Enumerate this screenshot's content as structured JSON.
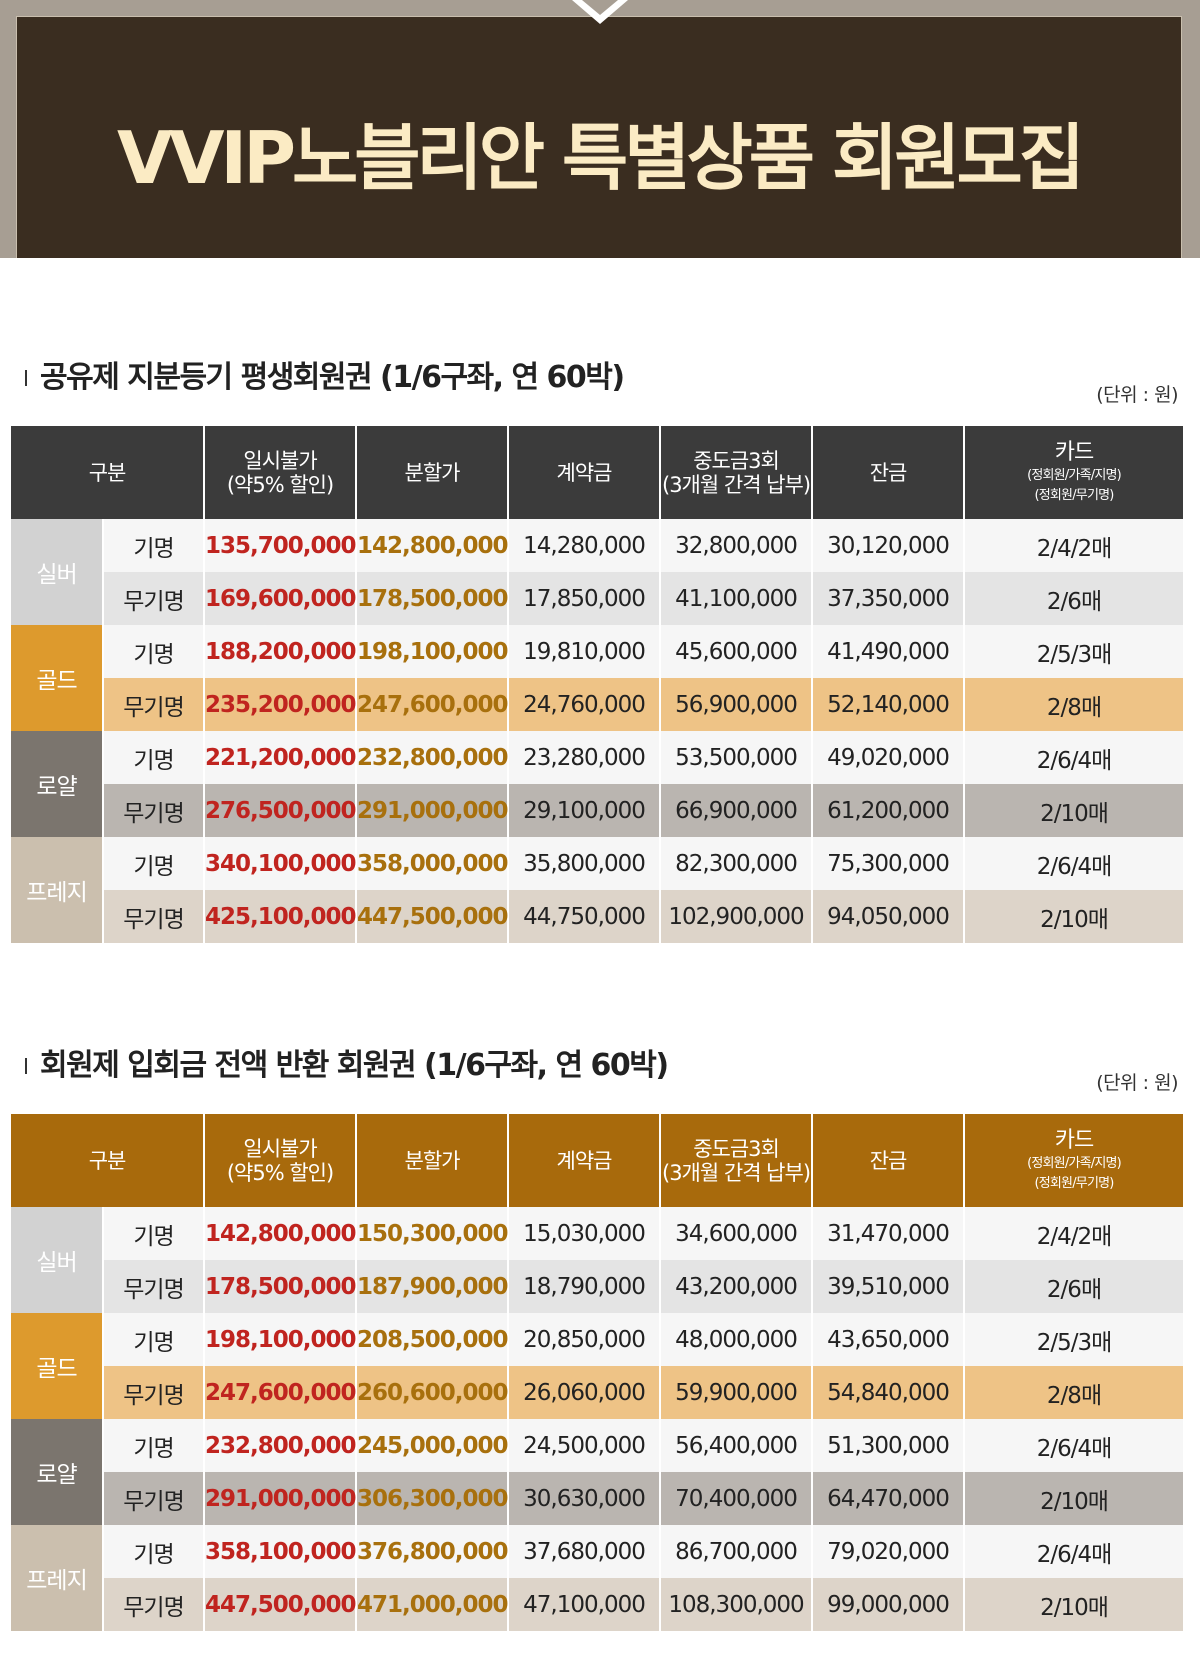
{
  "banner": {
    "title": "VVIP노블리안 특별상품 회원모집"
  },
  "columns": {
    "category": "구분",
    "lump_line1": "일시불가",
    "lump_line2": "(약5% 할인)",
    "installment": "분할가",
    "deposit": "계약금",
    "interim_line1": "중도금3회",
    "interim_line2": "(3개월 간격 납부)",
    "balance": "잔금",
    "card_line1": "카드",
    "card_line2": "(정회원/가족/지명)",
    "card_line3": "(정회원/무기명)"
  },
  "section1": {
    "title": "공유제 지분등기 평생회원권 (1/6구좌, 연 60박)",
    "unit": "(단위 : 원)",
    "rows": [
      {
        "tier": "실버",
        "type": "기명",
        "lump": "135,700,000",
        "inst": "142,800,000",
        "deposit": "14,280,000",
        "interim": "32,800,000",
        "balance": "30,120,000",
        "card": "2/4/2매"
      },
      {
        "tier": "실버",
        "type": "무기명",
        "lump": "169,600,000",
        "inst": "178,500,000",
        "deposit": "17,850,000",
        "interim": "41,100,000",
        "balance": "37,350,000",
        "card": "2/6매"
      },
      {
        "tier": "골드",
        "type": "기명",
        "lump": "188,200,000",
        "inst": "198,100,000",
        "deposit": "19,810,000",
        "interim": "45,600,000",
        "balance": "41,490,000",
        "card": "2/5/3매"
      },
      {
        "tier": "골드",
        "type": "무기명",
        "lump": "235,200,000",
        "inst": "247,600,000",
        "deposit": "24,760,000",
        "interim": "56,900,000",
        "balance": "52,140,000",
        "card": "2/8매"
      },
      {
        "tier": "로얄",
        "type": "기명",
        "lump": "221,200,000",
        "inst": "232,800,000",
        "deposit": "23,280,000",
        "interim": "53,500,000",
        "balance": "49,020,000",
        "card": "2/6/4매"
      },
      {
        "tier": "로얄",
        "type": "무기명",
        "lump": "276,500,000",
        "inst": "291,000,000",
        "deposit": "29,100,000",
        "interim": "66,900,000",
        "balance": "61,200,000",
        "card": "2/10매"
      },
      {
        "tier": "프레지",
        "type": "기명",
        "lump": "340,100,000",
        "inst": "358,000,000",
        "deposit": "35,800,000",
        "interim": "82,300,000",
        "balance": "75,300,000",
        "card": "2/6/4매"
      },
      {
        "tier": "프레지",
        "type": "무기명",
        "lump": "425,100,000",
        "inst": "447,500,000",
        "deposit": "44,750,000",
        "interim": "102,900,000",
        "balance": "94,050,000",
        "card": "2/10매"
      }
    ]
  },
  "section2": {
    "title": "회원제 입회금 전액 반환 회원권 (1/6구좌, 연 60박)",
    "unit": "(단위 : 원)",
    "rows": [
      {
        "tier": "실버",
        "type": "기명",
        "lump": "142,800,000",
        "inst": "150,300,000",
        "deposit": "15,030,000",
        "interim": "34,600,000",
        "balance": "31,470,000",
        "card": "2/4/2매"
      },
      {
        "tier": "실버",
        "type": "무기명",
        "lump": "178,500,000",
        "inst": "187,900,000",
        "deposit": "18,790,000",
        "interim": "43,200,000",
        "balance": "39,510,000",
        "card": "2/6매"
      },
      {
        "tier": "골드",
        "type": "기명",
        "lump": "198,100,000",
        "inst": "208,500,000",
        "deposit": "20,850,000",
        "interim": "48,000,000",
        "balance": "43,650,000",
        "card": "2/5/3매"
      },
      {
        "tier": "골드",
        "type": "무기명",
        "lump": "247,600,000",
        "inst": "260,600,000",
        "deposit": "26,060,000",
        "interim": "59,900,000",
        "balance": "54,840,000",
        "card": "2/8매"
      },
      {
        "tier": "로얄",
        "type": "기명",
        "lump": "232,800,000",
        "inst": "245,000,000",
        "deposit": "24,500,000",
        "interim": "56,400,000",
        "balance": "51,300,000",
        "card": "2/6/4매"
      },
      {
        "tier": "로얄",
        "type": "무기명",
        "lump": "291,000,000",
        "inst": "306,300,000",
        "deposit": "30,630,000",
        "interim": "70,400,000",
        "balance": "64,470,000",
        "card": "2/10매"
      },
      {
        "tier": "프레지",
        "type": "기명",
        "lump": "358,100,000",
        "inst": "376,800,000",
        "deposit": "37,680,000",
        "interim": "86,700,000",
        "balance": "79,020,000",
        "card": "2/6/4매"
      },
      {
        "tier": "프레지",
        "type": "무기명",
        "lump": "447,500,000",
        "inst": "471,000,000",
        "deposit": "47,100,000",
        "interim": "108,300,000",
        "balance": "99,000,000",
        "card": "2/10매"
      }
    ]
  },
  "colors": {
    "banner_bg": "#3a2d20",
    "banner_text": "#fbebc4",
    "header1_bg": "#3b3b3b",
    "header2_bg": "#a86a0c",
    "lump_text": "#c0241f",
    "installment_text": "#a8700d",
    "silver": "#d2d2d2",
    "gold": "#dd9a2d",
    "royal": "#7b756e",
    "prestige": "#cbbfae"
  }
}
